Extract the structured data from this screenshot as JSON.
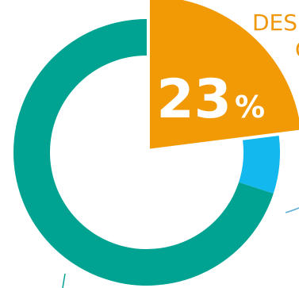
{
  "chart_data": {
    "type": "pie",
    "style": "donut with exploded highlighted slice",
    "slices": [
      {
        "value": 23,
        "color": "#f29a05",
        "exploded": true
      },
      {
        "value": 7,
        "color": "#12b8ee",
        "exploded": false
      },
      {
        "value": 70,
        "color": "#00a392",
        "exploded": false
      }
    ],
    "highlight_label": {
      "number": "23",
      "unit": "%"
    },
    "corner_text": {
      "line1": "DES",
      "line2": "C"
    },
    "decor_color": "#5aaed6"
  }
}
